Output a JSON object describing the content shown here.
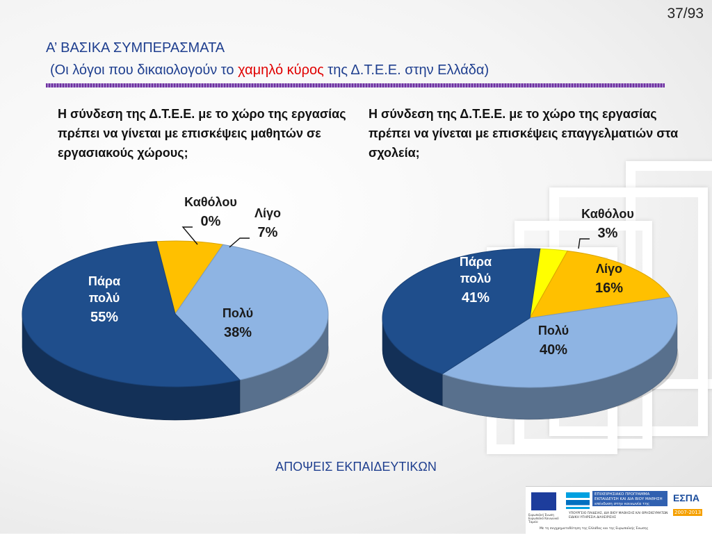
{
  "slide_number": "37/93",
  "title_line1": "Α’ ΒΑΣΙΚΑ ΣΥΜΠΕΡΑΣΜΑΤΑ",
  "title_line2": {
    "before": "(Οι λόγοι που δικαιολογούν το ",
    "highlight": "χαμηλό κύρος",
    "after": " της Δ.Τ.Ε.Ε. στην Ελλάδα)"
  },
  "question_left": "Η σύνδεση της Δ.Τ.Ε.Ε. με το χώρο της εργασίας πρέπει να γίνεται με επισκέψεις μαθητών σε εργασιακούς χώρους;",
  "question_right": "Η σύνδεση της Δ.Τ.Ε.Ε. με το χώρο της εργασίας πρέπει να γίνεται με επισκέψεις επαγγελματιών στα σχολεία;",
  "footer_caption": "ΑΠΟΨΕΙΣ ΕΚΠΑΙΔΕΥΤΙΚΩΝ",
  "chart_data": [
    {
      "type": "pie",
      "title": "",
      "slices": [
        {
          "name": "Καθόλου",
          "value": 0,
          "label": "0%",
          "color": "#ffff00"
        },
        {
          "name": "Λίγο",
          "value": 7,
          "label": "7%",
          "color": "#ffc000"
        },
        {
          "name": "Πολύ",
          "value": 38,
          "label": "38%",
          "color": "#8eb4e3"
        },
        {
          "name": "Πάρα πολύ",
          "value": 55,
          "label": "55%",
          "color": "#1f4e8c"
        }
      ]
    },
    {
      "type": "pie",
      "title": "",
      "slices": [
        {
          "name": "Καθόλου",
          "value": 3,
          "label": "3%",
          "color": "#ffff00"
        },
        {
          "name": "Λίγο",
          "value": 16,
          "label": "16%",
          "color": "#ffc000"
        },
        {
          "name": "Πολύ",
          "value": 40,
          "label": "40%",
          "color": "#8eb4e3"
        },
        {
          "name": "Πάρα πολύ",
          "value": 41,
          "label": "41%",
          "color": "#1f4e8c"
        }
      ]
    }
  ],
  "logos": {
    "eu_caption": "Ευρωπαϊκή Ένωση Ευρωπαϊκό Κοινωνικό Ταμείο",
    "program_name": "ΕΠΙΧΕΙΡΗΣΙΑΚΟ ΠΡΟΓΡΑΜΜΑ ΕΚΠΑΙΔΕΥΣΗ ΚΑΙ ΔΙΑ ΒΙΟΥ ΜΑΘΗΣΗ",
    "program_slogan": "επένδυση στην κοινωνία της γνώσης",
    "ministry": "ΥΠΟΥΡΓΕΙΟ ΠΑΙΔΕΙΑΣ, ΔΙΑ ΒΙΟΥ ΜΑΘΗΣΗΣ ΚΑΙ ΘΡΗΣΚΕΥΜΑΤΩΝ ΕΙΔΙΚΗ ΥΠΗΡΕΣΙΑ ΔΙΑΧΕΙΡΙΣΗΣ",
    "cofund": "Με τη συγχρηματοδότηση της Ελλάδας και της Ευρωπαϊκής Ένωσης",
    "espa_title": "ΕΣΠΑ",
    "espa_years": "2007-2013"
  }
}
